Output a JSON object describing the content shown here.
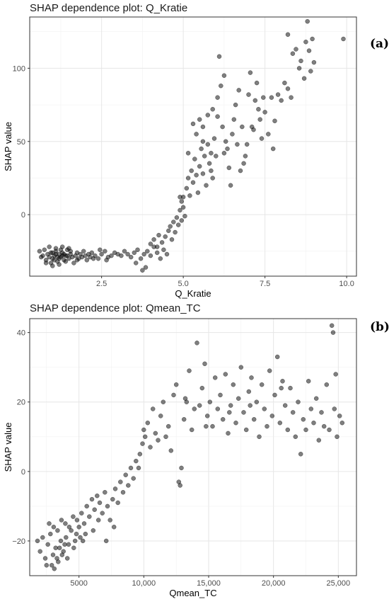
{
  "chart_data": [
    {
      "type": "scatter",
      "panel_label": "(a)",
      "title": "SHAP dependence plot: Q_Kratie",
      "xlabel": "Q_Kratie",
      "ylabel": "SHAP value",
      "xlim": [
        0.3,
        10.3
      ],
      "ylim": [
        -42,
        135
      ],
      "xticks": [
        2.5,
        5.0,
        7.5,
        10.0
      ],
      "xtick_labels": [
        "2.5",
        "5.0",
        "7.5",
        "10.0"
      ],
      "yticks": [
        0,
        50,
        100
      ],
      "ytick_labels": [
        "0",
        "50",
        "100"
      ],
      "grid": true,
      "legend": "none",
      "point_color": "#000000",
      "point_opacity": 0.5,
      "points": [
        [
          0.6,
          -25
        ],
        [
          0.7,
          -28
        ],
        [
          0.75,
          -24
        ],
        [
          0.8,
          -31
        ],
        [
          0.85,
          -27
        ],
        [
          0.9,
          -29
        ],
        [
          0.95,
          -26
        ],
        [
          1.0,
          -30
        ],
        [
          1.05,
          -28
        ],
        [
          1.1,
          -25
        ],
        [
          1.15,
          -32
        ],
        [
          1.2,
          -27
        ],
        [
          1.25,
          -29
        ],
        [
          1.3,
          -26
        ],
        [
          1.35,
          -31
        ],
        [
          1.4,
          -28
        ],
        [
          1.45,
          -24
        ],
        [
          1.5,
          -30
        ],
        [
          1.55,
          -27
        ],
        [
          1.6,
          -29
        ],
        [
          1.65,
          -33
        ],
        [
          1.7,
          -28
        ],
        [
          1.75,
          -26
        ],
        [
          1.8,
          -30
        ],
        [
          1.85,
          -27
        ],
        [
          1.9,
          -29
        ],
        [
          1.95,
          -25
        ],
        [
          2.0,
          -28
        ],
        [
          2.05,
          -31
        ],
        [
          2.1,
          -27
        ],
        [
          2.15,
          -29
        ],
        [
          2.2,
          -26
        ],
        [
          2.3,
          -28
        ],
        [
          2.4,
          -30
        ],
        [
          2.5,
          -27
        ],
        [
          2.6,
          -25
        ],
        [
          2.7,
          -29
        ],
        [
          2.8,
          -28
        ],
        [
          2.9,
          -26
        ],
        [
          3.0,
          -27
        ],
        [
          0.8,
          -33
        ],
        [
          1.0,
          -35
        ],
        [
          1.2,
          -34
        ],
        [
          1.4,
          -32
        ],
        [
          1.1,
          -23
        ],
        [
          1.3,
          -22
        ],
        [
          0.9,
          -22
        ],
        [
          1.5,
          -23
        ],
        [
          0.65,
          -29
        ],
        [
          0.95,
          -33
        ],
        [
          1.25,
          -24
        ],
        [
          1.55,
          -25
        ],
        [
          1.75,
          -31
        ],
        [
          2.25,
          -30
        ],
        [
          2.45,
          -24
        ],
        [
          2.65,
          -31
        ],
        [
          1.1,
          -27
        ],
        [
          1.15,
          -29
        ],
        [
          1.2,
          -30
        ],
        [
          1.3,
          -28
        ],
        [
          1.35,
          -27
        ],
        [
          1.0,
          -26
        ],
        [
          1.05,
          -31
        ],
        [
          1.45,
          -28
        ],
        [
          3.1,
          -28
        ],
        [
          3.2,
          -25
        ],
        [
          3.3,
          -27
        ],
        [
          3.4,
          -29
        ],
        [
          3.5,
          -26
        ],
        [
          3.6,
          -24
        ],
        [
          3.7,
          -30
        ],
        [
          3.8,
          -27
        ],
        [
          3.9,
          -25
        ],
        [
          4.0,
          -28
        ],
        [
          3.55,
          -33
        ],
        [
          3.75,
          -38
        ],
        [
          3.85,
          -36
        ],
        [
          4.1,
          -22
        ],
        [
          4.2,
          -26
        ],
        [
          4.3,
          -30
        ],
        [
          4.0,
          -20
        ],
        [
          4.1,
          -17
        ],
        [
          4.2,
          -22
        ],
        [
          4.25,
          -14
        ],
        [
          4.35,
          -19
        ],
        [
          4.4,
          -24
        ],
        [
          4.45,
          -15
        ],
        [
          4.5,
          -27
        ],
        [
          4.55,
          -11
        ],
        [
          4.6,
          -8
        ],
        [
          4.65,
          -17
        ],
        [
          4.7,
          -5
        ],
        [
          4.75,
          -12
        ],
        [
          4.8,
          -2
        ],
        [
          4.85,
          -7
        ],
        [
          4.9,
          3
        ],
        [
          4.95,
          -4
        ],
        [
          5.0,
          5
        ],
        [
          5.0,
          12
        ],
        [
          5.05,
          -1
        ],
        [
          4.9,
          12
        ],
        [
          4.95,
          9
        ],
        [
          5.1,
          18
        ],
        [
          5.15,
          25
        ],
        [
          5.2,
          13
        ],
        [
          5.25,
          30
        ],
        [
          5.3,
          22
        ],
        [
          5.35,
          38
        ],
        [
          5.4,
          27
        ],
        [
          5.45,
          15
        ],
        [
          5.5,
          33
        ],
        [
          5.55,
          45
        ],
        [
          5.6,
          28
        ],
        [
          5.65,
          40
        ],
        [
          5.7,
          20
        ],
        [
          5.75,
          48
        ],
        [
          5.8,
          35
        ],
        [
          5.85,
          42
        ],
        [
          5.9,
          25
        ],
        [
          5.95,
          52
        ],
        [
          5.3,
          62
        ],
        [
          5.4,
          55
        ],
        [
          5.5,
          65
        ],
        [
          5.6,
          60
        ],
        [
          5.75,
          68
        ],
        [
          5.9,
          72
        ],
        [
          6.0,
          40
        ],
        [
          6.05,
          80
        ],
        [
          6.1,
          108
        ],
        [
          6.15,
          88
        ],
        [
          6.2,
          60
        ],
        [
          6.25,
          95
        ],
        [
          6.3,
          50
        ],
        [
          6.35,
          45
        ],
        [
          6.4,
          32
        ],
        [
          6.45,
          20
        ],
        [
          6.5,
          55
        ],
        [
          6.55,
          65
        ],
        [
          6.6,
          75
        ],
        [
          6.7,
          85
        ],
        [
          6.8,
          60
        ],
        [
          6.9,
          40
        ],
        [
          7.0,
          82
        ],
        [
          7.05,
          97
        ],
        [
          7.1,
          60
        ],
        [
          7.15,
          58
        ],
        [
          7.2,
          78
        ],
        [
          7.25,
          90
        ],
        [
          7.3,
          72
        ],
        [
          7.35,
          65
        ],
        [
          7.4,
          52
        ],
        [
          7.5,
          70
        ],
        [
          7.6,
          55
        ],
        [
          7.7,
          80
        ],
        [
          7.8,
          64
        ],
        [
          7.9,
          82
        ],
        [
          8.0,
          78
        ],
        [
          8.1,
          90
        ],
        [
          8.2,
          86
        ],
        [
          8.3,
          80
        ],
        [
          8.2,
          123
        ],
        [
          8.35,
          110
        ],
        [
          8.45,
          113
        ],
        [
          8.55,
          100
        ],
        [
          8.6,
          105
        ],
        [
          8.7,
          93
        ],
        [
          8.75,
          118
        ],
        [
          8.8,
          132
        ],
        [
          8.85,
          112
        ],
        [
          8.9,
          98
        ],
        [
          8.95,
          120
        ],
        [
          9.0,
          104
        ],
        [
          9.9,
          120
        ],
        [
          6.85,
          35
        ],
        [
          6.95,
          48
        ],
        [
          6.75,
          30
        ],
        [
          5.15,
          42
        ],
        [
          5.6,
          50
        ],
        [
          5.85,
          30
        ],
        [
          6.05,
          67
        ],
        [
          6.25,
          42
        ],
        [
          6.65,
          48
        ],
        [
          7.45,
          80
        ],
        [
          7.75,
          45
        ]
      ]
    },
    {
      "type": "scatter",
      "panel_label": "(b)",
      "title": "SHAP dependence plot: Qmean_TC",
      "xlabel": "Qmean_TC",
      "ylabel": "SHAP value",
      "xlim": [
        1200,
        26400
      ],
      "ylim": [
        -30,
        44
      ],
      "xticks": [
        5000,
        10000,
        15000,
        20000,
        25000
      ],
      "xtick_labels": [
        "5000",
        "10,000",
        "15,000",
        "20,000",
        "25,000"
      ],
      "yticks": [
        -20,
        0,
        20,
        40
      ],
      "ytick_labels": [
        "−20",
        "0",
        "20",
        "40"
      ],
      "grid": true,
      "legend": "none",
      "point_color": "#000000",
      "point_opacity": 0.5,
      "points": [
        [
          1800,
          -20
        ],
        [
          2000,
          -23
        ],
        [
          2200,
          -19
        ],
        [
          2400,
          -25
        ],
        [
          2600,
          -21
        ],
        [
          2800,
          -18
        ],
        [
          3000,
          -24
        ],
        [
          3200,
          -22
        ],
        [
          3400,
          -26
        ],
        [
          3600,
          -20
        ],
        [
          3800,
          -23
        ],
        [
          4000,
          -19
        ],
        [
          4200,
          -21
        ],
        [
          4400,
          -17
        ],
        [
          4600,
          -22
        ],
        [
          4800,
          -18
        ],
        [
          2500,
          -27
        ],
        [
          2900,
          -27
        ],
        [
          3100,
          -28
        ],
        [
          3300,
          -25
        ],
        [
          3500,
          -22
        ],
        [
          3700,
          -24
        ],
        [
          3900,
          -21
        ],
        [
          4100,
          -25
        ],
        [
          2700,
          -15
        ],
        [
          3050,
          -16
        ],
        [
          3350,
          -17
        ],
        [
          3650,
          -14
        ],
        [
          3950,
          -15
        ],
        [
          4250,
          -16
        ],
        [
          4550,
          -13
        ],
        [
          4850,
          -14
        ],
        [
          5000,
          -16
        ],
        [
          5200,
          -12
        ],
        [
          5400,
          -15
        ],
        [
          5600,
          -10
        ],
        [
          5800,
          -13
        ],
        [
          6000,
          -8
        ],
        [
          6200,
          -11
        ],
        [
          6400,
          -7
        ],
        [
          6600,
          -9
        ],
        [
          6800,
          -12
        ],
        [
          7000,
          -6
        ],
        [
          7200,
          -10
        ],
        [
          7400,
          -14
        ],
        [
          7600,
          -8
        ],
        [
          7800,
          -5
        ],
        [
          8000,
          -9
        ],
        [
          8200,
          -3
        ],
        [
          8400,
          -6
        ],
        [
          8600,
          -1
        ],
        [
          8800,
          -4
        ],
        [
          9000,
          1
        ],
        [
          9200,
          -2
        ],
        [
          9400,
          3
        ],
        [
          9600,
          1
        ],
        [
          5100,
          -19
        ],
        [
          5500,
          -18
        ],
        [
          6100,
          -17
        ],
        [
          6500,
          -14
        ],
        [
          7100,
          -20
        ],
        [
          7700,
          -16
        ],
        [
          5300,
          -20
        ],
        [
          4700,
          -20
        ],
        [
          9700,
          5
        ],
        [
          9900,
          8
        ],
        [
          10000,
          12
        ],
        [
          10100,
          10
        ],
        [
          10300,
          14
        ],
        [
          10500,
          7
        ],
        [
          10700,
          18
        ],
        [
          10900,
          11
        ],
        [
          11100,
          9
        ],
        [
          11300,
          16
        ],
        [
          11500,
          20
        ],
        [
          11700,
          10
        ],
        [
          11900,
          13
        ],
        [
          12100,
          6
        ],
        [
          12300,
          22
        ],
        [
          12500,
          25
        ],
        [
          12700,
          -3
        ],
        [
          12900,
          1
        ],
        [
          13100,
          15
        ],
        [
          13300,
          20
        ],
        [
          13500,
          29
        ],
        [
          13700,
          12
        ],
        [
          13900,
          18
        ],
        [
          14100,
          37
        ],
        [
          14300,
          19
        ],
        [
          14500,
          24
        ],
        [
          14700,
          31
        ],
        [
          14900,
          16
        ],
        [
          15100,
          20
        ],
        [
          15300,
          13
        ],
        [
          15500,
          27
        ],
        [
          15700,
          18
        ],
        [
          15900,
          22
        ],
        [
          16100,
          15
        ],
        [
          16300,
          28
        ],
        [
          16500,
          11
        ],
        [
          16700,
          19
        ],
        [
          16900,
          25
        ],
        [
          17100,
          14
        ],
        [
          17300,
          21
        ],
        [
          17500,
          30
        ],
        [
          17700,
          17
        ],
        [
          17900,
          12
        ],
        [
          18100,
          23
        ],
        [
          18300,
          27
        ],
        [
          18500,
          15
        ],
        [
          18700,
          20
        ],
        [
          18900,
          10
        ],
        [
          19100,
          25
        ],
        [
          19300,
          18
        ],
        [
          19500,
          13
        ],
        [
          19700,
          29
        ],
        [
          19900,
          16
        ],
        [
          20100,
          22
        ],
        [
          20300,
          33
        ],
        [
          20500,
          14
        ],
        [
          20700,
          26
        ],
        [
          20900,
          19
        ],
        [
          21100,
          12
        ],
        [
          21300,
          24
        ],
        [
          21500,
          17
        ],
        [
          21700,
          10
        ],
        [
          21900,
          20
        ],
        [
          22100,
          5
        ],
        [
          22300,
          15
        ],
        [
          22500,
          12
        ],
        [
          22700,
          26
        ],
        [
          22900,
          18
        ],
        [
          23100,
          14
        ],
        [
          23300,
          21
        ],
        [
          23500,
          9
        ],
        [
          23700,
          17
        ],
        [
          23900,
          13
        ],
        [
          24100,
          25
        ],
        [
          24300,
          12
        ],
        [
          24500,
          42
        ],
        [
          24600,
          40
        ],
        [
          24700,
          18
        ],
        [
          24800,
          28
        ],
        [
          24900,
          10
        ],
        [
          25100,
          16
        ],
        [
          25300,
          14
        ],
        [
          12800,
          -4
        ],
        [
          13200,
          21
        ],
        [
          14800,
          13
        ],
        [
          16600,
          17
        ],
        [
          18200,
          19
        ],
        [
          20600,
          24
        ]
      ]
    }
  ]
}
